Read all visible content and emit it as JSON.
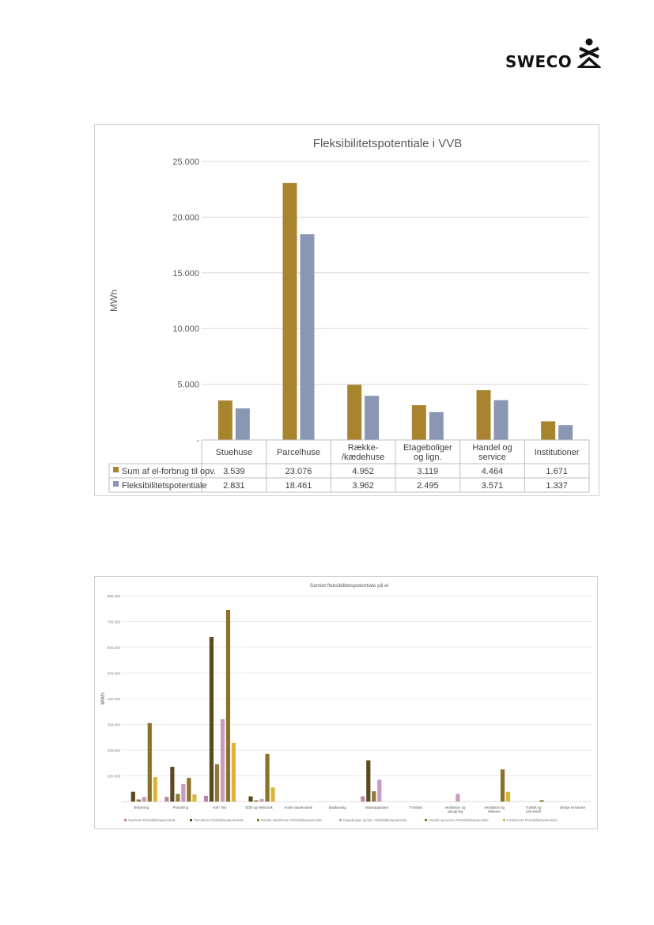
{
  "brand": {
    "name": "SWECO",
    "logo_icon": "sweco-figure-icon"
  },
  "colors": {
    "gold": "#a8842e",
    "bluegrey": "#8997b2"
  },
  "chart_data": [
    {
      "type": "bar",
      "title": "Fleksibilitetspotentiale  i VVB",
      "ylabel": "MWh",
      "ylim": [
        0,
        25000
      ],
      "yticks": [
        0,
        5000,
        10000,
        15000,
        20000,
        25000
      ],
      "ytick_labels": [
        "-",
        "5.000",
        "10.000",
        "15.000",
        "20.000",
        "25.000"
      ],
      "categories": [
        "Stuehuse",
        "Parcelhuse",
        "Række-\n/kædehuse",
        "Etageboliger\nog lign.",
        "Handel og\nservice",
        "Institutioner"
      ],
      "grid": true,
      "legend": "data-table",
      "series": [
        {
          "name": "Sum af el-forbrug til opv.",
          "color": "#a8842e",
          "values": [
            3539,
            23076,
            4952,
            3119,
            4464,
            1671
          ],
          "labels": [
            "3.539",
            "23.076",
            "4.952",
            "3.119",
            "4.464",
            "1.671"
          ]
        },
        {
          "name": "Fleksibilitetspotentiale",
          "color": "#8997b2",
          "values": [
            2831,
            18461,
            3962,
            2495,
            3571,
            1337
          ],
          "labels": [
            "2.831",
            "18.461",
            "3.962",
            "2.495",
            "3.571",
            "1.337"
          ]
        }
      ]
    },
    {
      "type": "bar",
      "title": "Samlet fleksibilitetspotentiale på el",
      "ylabel": "MWh",
      "ylim": [
        0,
        800000
      ],
      "yticks": [
        0,
        100000,
        200000,
        300000,
        400000,
        500000,
        600000,
        700000,
        800000
      ],
      "ytick_labels": [
        "-",
        "100.000",
        "200.000",
        "300.000",
        "400.000",
        "500.000",
        "600.000",
        "700.000",
        "800.000"
      ],
      "categories": [
        "Belysning",
        "Pumpning",
        "Køl / frys",
        "EDB og elektronik",
        "Andet stamemdele",
        "Madlavning",
        "Vaskeapparater",
        "TV/video",
        "Ventilation og udsugning",
        "Ventilation og blæsere",
        "Trykluft og procesluft",
        "Øvrige elmotorer"
      ],
      "grid": true,
      "legend": "bottom",
      "series": [
        {
          "name": "Stuehuse Fleksibilitetspotentiale",
          "color": "#b889a7",
          "values": [
            0,
            18000,
            22000,
            0,
            0,
            0,
            20000,
            0,
            0,
            0,
            0,
            0
          ]
        },
        {
          "name": "Parcelhuse Fleksibilitetspotentiale",
          "color": "#5a4a1e",
          "values": [
            38000,
            135000,
            640000,
            20000,
            0,
            0,
            160000,
            0,
            0,
            0,
            0,
            0
          ]
        },
        {
          "name": "Række-/kædehuse Fleksibilitetspotentiale",
          "color": "#8f7a3a",
          "values": [
            8000,
            30000,
            145000,
            5000,
            0,
            0,
            40000,
            0,
            0,
            0,
            0,
            0
          ]
        },
        {
          "name": "Etageboliger og lign. Fleksibilitetspotentiale",
          "color": "#c79bc4",
          "values": [
            18000,
            68000,
            320000,
            10000,
            0,
            0,
            85000,
            0,
            30000,
            0,
            0,
            0
          ]
        },
        {
          "name": "Handel og service Fleksibilitetspotentiale",
          "color": "#8a7226",
          "values": [
            305000,
            92000,
            745000,
            185000,
            0,
            0,
            0,
            0,
            0,
            125000,
            5000,
            0
          ]
        },
        {
          "name": "Institutioner Fleksibilitetspotentiale",
          "color": "#d9b63a",
          "values": [
            95000,
            28000,
            228000,
            55000,
            0,
            0,
            0,
            0,
            0,
            38000,
            0,
            0
          ]
        }
      ]
    }
  ]
}
